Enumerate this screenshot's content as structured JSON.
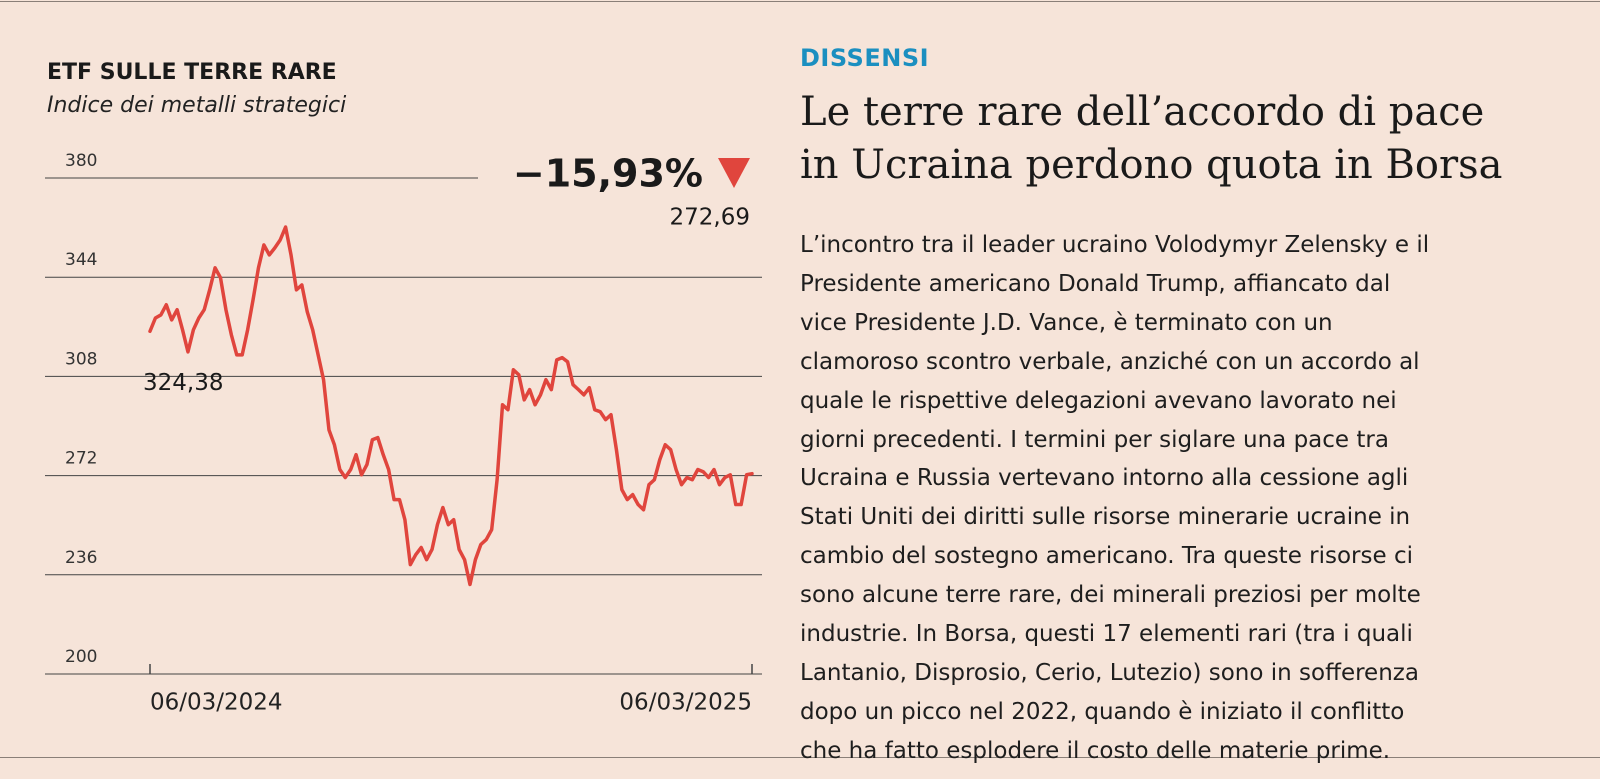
{
  "chart_data": {
    "type": "line",
    "title": "ETF SULLE TERRE RARE",
    "subtitle": "Indice dei metalli strategici",
    "change_label": "−15,93%",
    "color": "#e0453d",
    "ylim": [
      200,
      380
    ],
    "yticks": [
      200,
      236,
      272,
      308,
      344,
      380
    ],
    "grid": true,
    "categories": [
      "06/03/2024",
      null,
      null,
      null,
      null,
      null,
      null,
      null,
      null,
      null,
      null,
      null,
      null,
      null,
      null,
      null,
      null,
      null,
      null,
      null,
      null,
      null,
      null,
      null,
      null,
      null,
      null,
      null,
      null,
      null,
      null,
      null,
      null,
      null,
      null,
      null,
      null,
      null,
      null,
      null,
      null,
      null,
      null,
      null,
      null,
      null,
      null,
      null,
      null,
      null,
      null,
      null,
      null,
      null,
      null,
      null,
      null,
      null,
      null,
      null,
      null,
      null,
      null,
      null,
      null,
      null,
      null,
      null,
      null,
      null,
      null,
      null,
      null,
      null,
      null,
      null,
      null,
      null,
      null,
      null,
      null,
      null,
      null,
      null,
      null,
      null,
      null,
      null,
      null,
      null,
      null,
      null,
      null,
      null,
      null,
      null,
      null,
      null,
      null,
      null,
      null,
      null,
      null,
      null,
      null,
      null,
      null,
      null,
      null,
      null,
      null,
      "06/03/2025"
    ],
    "values": [
      324.38,
      329.2,
      330.3,
      334.0,
      328.5,
      332.2,
      324.9,
      316.9,
      324.9,
      329.2,
      332.2,
      339.4,
      347.4,
      343.8,
      332.2,
      323.1,
      315.8,
      315.8,
      324.9,
      335.8,
      347.4,
      355.7,
      352.1,
      354.6,
      357.5,
      362.2,
      352.1,
      339.4,
      341.2,
      331.4,
      324.9,
      315.8,
      306.8,
      288.6,
      283.2,
      274.2,
      271.3,
      274.2,
      279.6,
      272.3,
      276.0,
      285.0,
      285.8,
      279.6,
      274.2,
      263.3,
      263.3,
      256.0,
      239.7,
      243.3,
      245.9,
      241.5,
      245.2,
      254.2,
      260.4,
      254.2,
      256.0,
      245.2,
      241.5,
      232.5,
      241.5,
      247.0,
      248.8,
      252.4,
      270.5,
      297.7,
      295.9,
      310.4,
      308.6,
      299.5,
      303.2,
      297.7,
      301.3,
      306.8,
      303.2,
      314.0,
      314.8,
      313.3,
      305.0,
      303.2,
      301.3,
      303.9,
      295.9,
      295.2,
      292.3,
      294.1,
      281.4,
      266.9,
      263.3,
      265.1,
      261.5,
      259.6,
      268.7,
      270.5,
      277.8,
      283.2,
      281.4,
      274.2,
      268.7,
      271.3,
      270.5,
      274.2,
      273.4,
      271.3,
      274.2,
      268.7,
      271.3,
      272.3,
      261.5,
      261.5,
      272.3,
      272.69
    ],
    "value_labels": [
      "324,38",
      null,
      null,
      null,
      null,
      null,
      null,
      null,
      null,
      null,
      null,
      null,
      null,
      null,
      null,
      null,
      null,
      null,
      null,
      null,
      null,
      null,
      null,
      null,
      null,
      null,
      null,
      null,
      null,
      null,
      null,
      null,
      null,
      null,
      null,
      null,
      null,
      null,
      null,
      null,
      null,
      null,
      null,
      null,
      null,
      null,
      null,
      null,
      null,
      null,
      null,
      null,
      null,
      null,
      null,
      null,
      null,
      null,
      null,
      null,
      null,
      null,
      null,
      null,
      null,
      null,
      null,
      null,
      null,
      null,
      null,
      null,
      null,
      null,
      null,
      null,
      null,
      null,
      null,
      null,
      null,
      null,
      null,
      null,
      null,
      null,
      null,
      null,
      null,
      null,
      null,
      null,
      null,
      null,
      null,
      null,
      null,
      null,
      null,
      null,
      null,
      null,
      null,
      null,
      null,
      null,
      null,
      null,
      null,
      null,
      null,
      "272,69"
    ]
  },
  "article": {
    "kicker": "DISSENSI",
    "headline_lines": [
      "Le terre rare dell’accordo di pace",
      "in Ucraina perdono quota in Borsa"
    ],
    "body_lines": [
      "L’incontro tra il leader ucraino Volodymyr Zelensky e il",
      "Presidente americano Donald Trump, affiancato dal",
      "vice Presidente J.D. Vance, è terminato con un",
      "clamoroso scontro verbale, anziché con un accordo al",
      "quale le rispettive delegazioni avevano lavorato nei",
      "giorni precedenti. I termini per siglare una pace tra",
      "Ucraina e Russia vertevano intorno alla cessione agli",
      "Stati Uniti dei diritti sulle risorse minerarie ucraine in",
      "cambio del sostegno americano. Tra queste risorse ci",
      "sono alcune terre rare, dei minerali preziosi per molte",
      "industrie. In Borsa, questi 17 elementi rari (tra i quali",
      "Lantanio, Disprosio, Cerio, Lutezio) sono in sofferenza",
      "dopo un picco nel 2022, quando è iniziato il conflitto",
      "che ha fatto esplodere il costo delle materie prime."
    ]
  }
}
